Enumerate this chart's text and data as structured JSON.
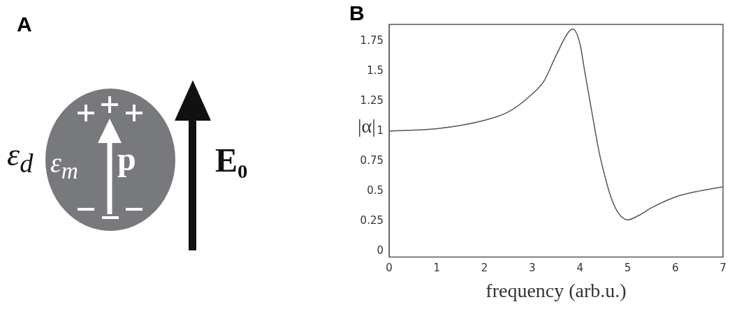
{
  "chart_data": [
    {
      "type": "other",
      "title": "A",
      "annotations": [
        "ε$_{d}$",
        "ε$_{m}$",
        "p",
        "E₀"
      ]
    },
    {
      "type": "line",
      "title": "B",
      "xlabel": "frequency (arb.u.)",
      "ylabel": "|α|",
      "x": [
        0,
        1,
        2,
        2.5,
        3,
        3.25,
        3.5,
        3.75,
        3.85,
        4,
        4.1,
        4.25,
        4.4,
        4.5,
        4.65,
        4.8,
        5,
        5.25,
        5.5,
        6,
        6.5,
        7
      ],
      "series": [
        {
          "color": "#555555",
          "values": [
            1.0,
            1.02,
            1.09,
            1.16,
            1.31,
            1.42,
            1.63,
            1.82,
            1.85,
            1.73,
            1.5,
            1.16,
            0.83,
            0.66,
            0.45,
            0.32,
            0.26,
            0.3,
            0.36,
            0.45,
            0.5,
            0.535
          ]
        }
      ],
      "xlim": [
        0,
        7
      ],
      "ylim": [
        -0.05,
        1.89
      ],
      "xticks": [
        0,
        1,
        2,
        3,
        4,
        5,
        6,
        7
      ],
      "yticks": [
        0,
        0.25,
        0.5,
        0.75,
        1,
        1.25,
        1.5,
        1.75
      ],
      "marker": "none",
      "line_style": "solid"
    }
  ]
}
